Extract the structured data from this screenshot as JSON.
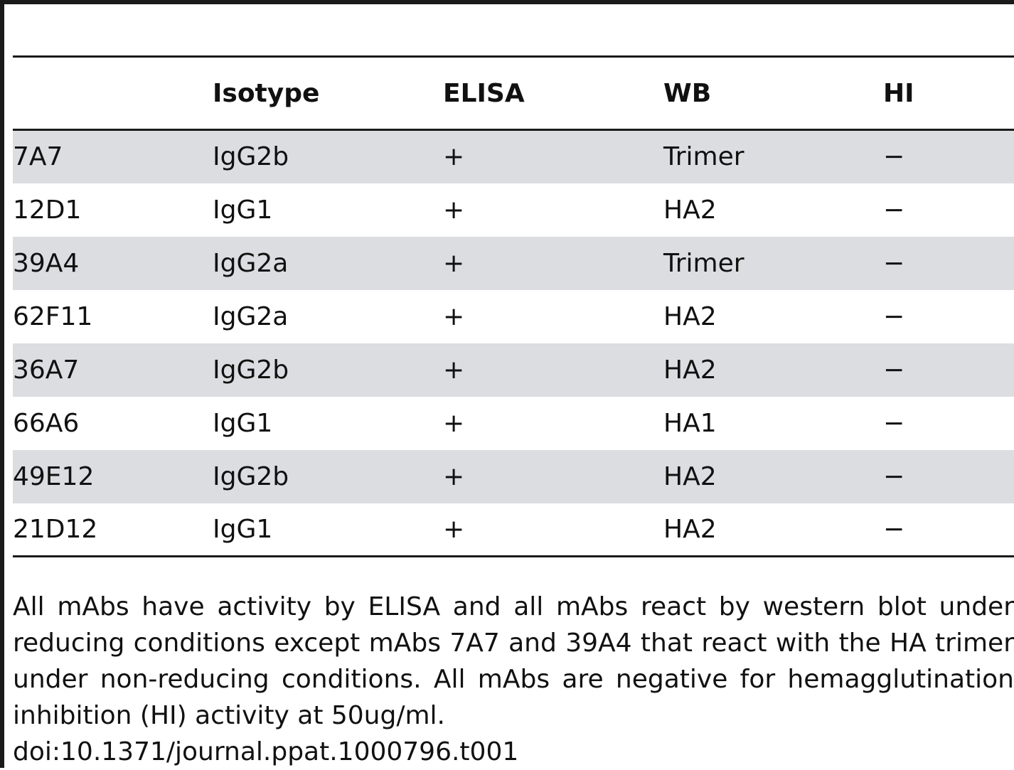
{
  "table": {
    "headers": [
      "",
      "Isotype",
      "ELISA",
      "WB",
      "HI"
    ],
    "rows": [
      [
        "7A7",
        "IgG2b",
        "+",
        "Trimer",
        "−"
      ],
      [
        "12D1",
        "IgG1",
        "+",
        "HA2",
        "−"
      ],
      [
        "39A4",
        "IgG2a",
        "+",
        "Trimer",
        "−"
      ],
      [
        "62F11",
        "IgG2a",
        "+",
        "HA2",
        "−"
      ],
      [
        "36A7",
        "IgG2b",
        "+",
        "HA2",
        "−"
      ],
      [
        "66A6",
        "IgG1",
        "+",
        "HA1",
        "−"
      ],
      [
        "49E12",
        "IgG2b",
        "+",
        "HA2",
        "−"
      ],
      [
        "21D12",
        "IgG1",
        "+",
        "HA2",
        "−"
      ]
    ]
  },
  "caption": {
    "text": "All mAbs have activity by ELISA and all mAbs react by western blot under reducing conditions except mAbs 7A7 and 39A4 that react with the HA trimer under non-reducing conditions. All mAbs are negative for hemagglutination inhibition (HI) activity at 50ug/ml.",
    "doi": "doi:10.1371/journal.ppat.1000796.t001"
  }
}
